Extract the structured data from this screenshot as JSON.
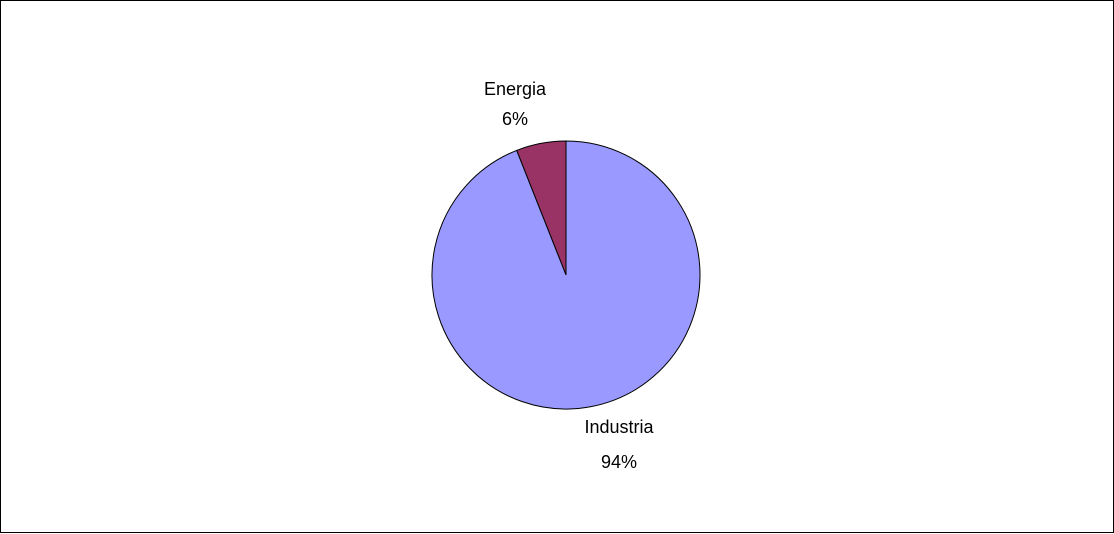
{
  "chart_data": {
    "type": "pie",
    "title": "",
    "slices": [
      {
        "name": "Energia",
        "value": 6,
        "label": "6%",
        "color": "#993366"
      },
      {
        "name": "Industria",
        "value": 94,
        "label": "94%",
        "color": "#9999FF"
      }
    ],
    "start_angle": "12 o'clock",
    "direction": "counterclockwise",
    "border_color": "#000000",
    "legend": "none"
  }
}
